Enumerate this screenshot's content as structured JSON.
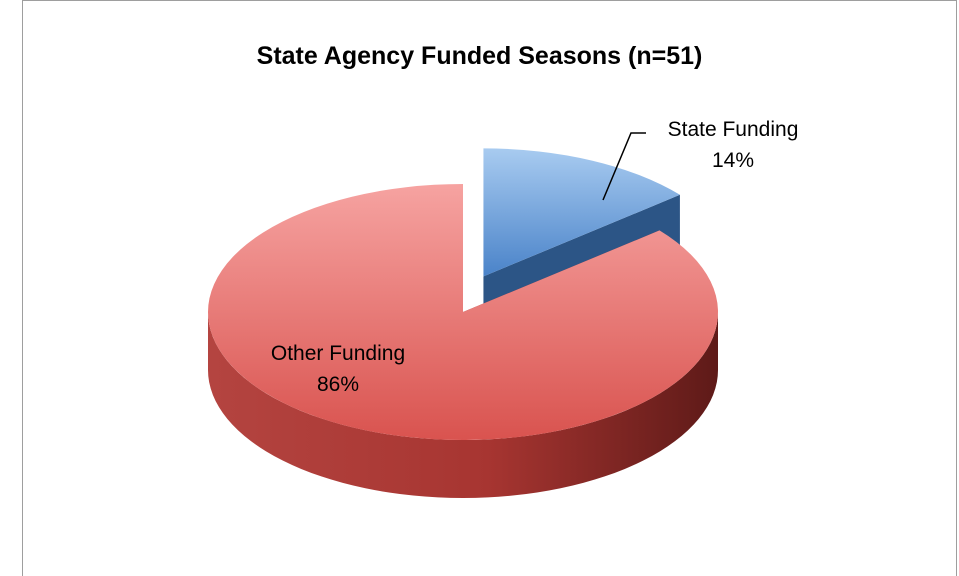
{
  "chart_data": {
    "type": "pie",
    "title": "State Agency Funded Seasons (n=51)",
    "slices": [
      {
        "label": "State Funding",
        "value": 14,
        "value_label": "14%",
        "color": "#4f81bd",
        "exploded": true
      },
      {
        "label": "Other Funding",
        "value": 86,
        "value_label": "86%",
        "color": "#c0504d",
        "exploded": false
      }
    ],
    "legend": "none",
    "style": "3d"
  }
}
